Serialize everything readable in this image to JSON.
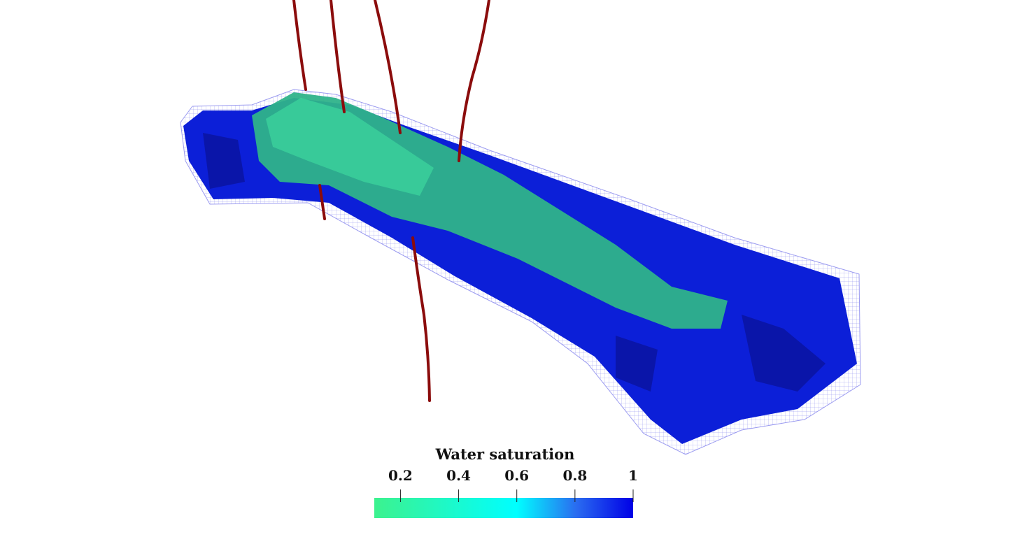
{
  "colorbar": {
    "title": "Water saturation",
    "range": [
      0.11,
      1
    ],
    "ticks": [
      0.2,
      0.4,
      0.6,
      0.8,
      1
    ]
  }
}
